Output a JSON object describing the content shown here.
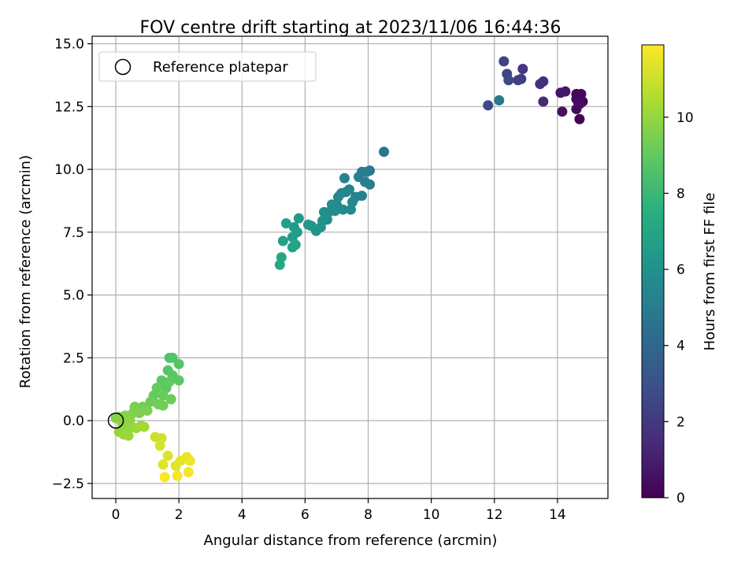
{
  "chart_data": {
    "type": "scatter",
    "title": "FOV centre drift starting at 2023/11/06 16:44:36",
    "xlabel": "Angular distance from reference (arcmin)",
    "ylabel": "Rotation from reference (arcmin)",
    "xlim": [
      -0.75,
      15.6
    ],
    "ylim": [
      -3.1,
      15.3
    ],
    "xticks": [
      0,
      2,
      4,
      6,
      8,
      10,
      12,
      14
    ],
    "yticks": [
      -2.5,
      0.0,
      2.5,
      5.0,
      7.5,
      10.0,
      12.5,
      15.0
    ],
    "xtick_labels": [
      "0",
      "2",
      "4",
      "6",
      "8",
      "10",
      "12",
      "14"
    ],
    "ytick_labels": [
      "−2.5",
      "0.0",
      "2.5",
      "5.0",
      "7.5",
      "10.0",
      "12.5",
      "15.0"
    ],
    "grid": true,
    "legend": {
      "position": "upper-left",
      "entries": [
        {
          "label": "Reference platepar",
          "marker": "hollow-circle"
        }
      ]
    },
    "reference_point": {
      "x": 0,
      "y": 0
    },
    "colorbar": {
      "label": "Hours from first FF file",
      "colormap": "viridis",
      "range": [
        0,
        11.9
      ],
      "ticks": [
        0,
        2,
        4,
        6,
        8,
        10
      ],
      "tick_labels": [
        "0",
        "2",
        "4",
        "6",
        "8",
        "10"
      ]
    },
    "points": [
      {
        "x": 14.7,
        "y": 12.0,
        "t": 0.05
      },
      {
        "x": 14.6,
        "y": 12.8,
        "t": 0.1
      },
      {
        "x": 14.8,
        "y": 12.7,
        "t": 0.15
      },
      {
        "x": 14.6,
        "y": 13.0,
        "t": 0.2
      },
      {
        "x": 14.7,
        "y": 12.9,
        "t": 0.25
      },
      {
        "x": 14.75,
        "y": 13.0,
        "t": 0.3
      },
      {
        "x": 14.6,
        "y": 12.4,
        "t": 0.35
      },
      {
        "x": 14.65,
        "y": 12.7,
        "t": 0.4
      },
      {
        "x": 14.7,
        "y": 12.6,
        "t": 0.45
      },
      {
        "x": 14.15,
        "y": 12.3,
        "t": 0.55
      },
      {
        "x": 14.1,
        "y": 13.05,
        "t": 0.65
      },
      {
        "x": 14.25,
        "y": 13.1,
        "t": 0.75
      },
      {
        "x": 13.55,
        "y": 12.7,
        "t": 1.4
      },
      {
        "x": 13.55,
        "y": 13.5,
        "t": 1.6
      },
      {
        "x": 13.45,
        "y": 13.4,
        "t": 1.7
      },
      {
        "x": 12.9,
        "y": 14.0,
        "t": 1.9
      },
      {
        "x": 12.85,
        "y": 13.6,
        "t": 2.0
      },
      {
        "x": 12.75,
        "y": 13.55,
        "t": 2.2
      },
      {
        "x": 12.3,
        "y": 14.3,
        "t": 2.4
      },
      {
        "x": 12.4,
        "y": 13.8,
        "t": 2.5
      },
      {
        "x": 12.45,
        "y": 13.55,
        "t": 2.6
      },
      {
        "x": 11.8,
        "y": 12.55,
        "t": 2.7
      },
      {
        "x": 12.15,
        "y": 12.75,
        "t": 4.8
      },
      {
        "x": 8.5,
        "y": 10.7,
        "t": 4.7
      },
      {
        "x": 8.05,
        "y": 9.95,
        "t": 4.9
      },
      {
        "x": 7.95,
        "y": 9.9,
        "t": 5.0
      },
      {
        "x": 7.8,
        "y": 9.9,
        "t": 5.1
      },
      {
        "x": 8.05,
        "y": 9.4,
        "t": 5.1
      },
      {
        "x": 7.9,
        "y": 9.5,
        "t": 5.2
      },
      {
        "x": 7.7,
        "y": 9.7,
        "t": 5.2
      },
      {
        "x": 7.8,
        "y": 8.95,
        "t": 5.25
      },
      {
        "x": 7.6,
        "y": 8.9,
        "t": 5.3
      },
      {
        "x": 7.25,
        "y": 9.65,
        "t": 5.35
      },
      {
        "x": 7.4,
        "y": 9.2,
        "t": 5.4
      },
      {
        "x": 7.3,
        "y": 9.1,
        "t": 5.45
      },
      {
        "x": 7.15,
        "y": 9.05,
        "t": 5.5
      },
      {
        "x": 7.05,
        "y": 8.9,
        "t": 5.55
      },
      {
        "x": 7.5,
        "y": 8.7,
        "t": 5.6
      },
      {
        "x": 7.45,
        "y": 8.4,
        "t": 5.65
      },
      {
        "x": 7.2,
        "y": 8.4,
        "t": 5.7
      },
      {
        "x": 7.0,
        "y": 8.6,
        "t": 5.75
      },
      {
        "x": 6.95,
        "y": 8.35,
        "t": 5.8
      },
      {
        "x": 6.85,
        "y": 8.6,
        "t": 5.85
      },
      {
        "x": 6.75,
        "y": 8.3,
        "t": 5.9
      },
      {
        "x": 6.6,
        "y": 8.3,
        "t": 5.95
      },
      {
        "x": 6.7,
        "y": 8.0,
        "t": 6.0
      },
      {
        "x": 6.55,
        "y": 7.95,
        "t": 6.05
      },
      {
        "x": 6.5,
        "y": 7.7,
        "t": 6.1
      },
      {
        "x": 6.35,
        "y": 7.55,
        "t": 6.15
      },
      {
        "x": 6.2,
        "y": 7.75,
        "t": 6.2
      },
      {
        "x": 6.1,
        "y": 7.8,
        "t": 6.3
      },
      {
        "x": 5.8,
        "y": 8.05,
        "t": 6.4
      },
      {
        "x": 5.65,
        "y": 7.7,
        "t": 6.5
      },
      {
        "x": 5.75,
        "y": 7.5,
        "t": 6.55
      },
      {
        "x": 5.6,
        "y": 7.3,
        "t": 6.6
      },
      {
        "x": 5.4,
        "y": 7.85,
        "t": 6.7
      },
      {
        "x": 5.3,
        "y": 7.15,
        "t": 6.8
      },
      {
        "x": 5.7,
        "y": 7.0,
        "t": 6.9
      },
      {
        "x": 5.6,
        "y": 6.9,
        "t": 7.0
      },
      {
        "x": 5.25,
        "y": 6.5,
        "t": 7.1
      },
      {
        "x": 5.2,
        "y": 6.2,
        "t": 7.2
      },
      {
        "x": 1.7,
        "y": 2.5,
        "t": 8.6
      },
      {
        "x": 1.8,
        "y": 2.5,
        "t": 8.65
      },
      {
        "x": 2.0,
        "y": 2.25,
        "t": 8.7
      },
      {
        "x": 1.65,
        "y": 2.0,
        "t": 8.75
      },
      {
        "x": 1.8,
        "y": 1.8,
        "t": 8.8
      },
      {
        "x": 2.0,
        "y": 1.6,
        "t": 8.85
      },
      {
        "x": 1.45,
        "y": 1.6,
        "t": 8.9
      },
      {
        "x": 1.6,
        "y": 1.3,
        "t": 8.95
      },
      {
        "x": 1.7,
        "y": 1.55,
        "t": 9.0
      },
      {
        "x": 1.3,
        "y": 1.3,
        "t": 9.05
      },
      {
        "x": 1.2,
        "y": 1.0,
        "t": 9.1
      },
      {
        "x": 1.5,
        "y": 1.0,
        "t": 9.15
      },
      {
        "x": 1.75,
        "y": 0.85,
        "t": 9.2
      },
      {
        "x": 1.1,
        "y": 0.75,
        "t": 9.25
      },
      {
        "x": 1.35,
        "y": 0.65,
        "t": 9.3
      },
      {
        "x": 1.5,
        "y": 0.6,
        "t": 9.35
      },
      {
        "x": 0.85,
        "y": 0.55,
        "t": 9.4
      },
      {
        "x": 0.6,
        "y": 0.55,
        "t": 9.45
      },
      {
        "x": 1.0,
        "y": 0.4,
        "t": 9.5
      },
      {
        "x": 0.75,
        "y": 0.3,
        "t": 9.55
      },
      {
        "x": 0.55,
        "y": 0.3,
        "t": 9.6
      },
      {
        "x": 0.3,
        "y": 0.2,
        "t": 9.65
      },
      {
        "x": 0.1,
        "y": 0.15,
        "t": 9.7
      },
      {
        "x": 0.0,
        "y": 0.1,
        "t": 9.75
      },
      {
        "x": 0.45,
        "y": 0.0,
        "t": 9.8
      },
      {
        "x": 0.2,
        "y": -0.1,
        "t": 9.85
      },
      {
        "x": 0.3,
        "y": -0.3,
        "t": 9.9
      },
      {
        "x": 0.5,
        "y": -0.25,
        "t": 9.95
      },
      {
        "x": 0.1,
        "y": -0.45,
        "t": 10.0
      },
      {
        "x": 0.25,
        "y": -0.55,
        "t": 10.05
      },
      {
        "x": 0.4,
        "y": -0.6,
        "t": 10.1
      },
      {
        "x": 0.65,
        "y": -0.3,
        "t": 10.15
      },
      {
        "x": 0.8,
        "y": -0.2,
        "t": 10.2
      },
      {
        "x": 0.9,
        "y": -0.25,
        "t": 10.25
      },
      {
        "x": 1.25,
        "y": -0.65,
        "t": 11.0
      },
      {
        "x": 1.45,
        "y": -0.7,
        "t": 11.1
      },
      {
        "x": 1.4,
        "y": -1.0,
        "t": 11.2
      },
      {
        "x": 1.65,
        "y": -1.4,
        "t": 11.3
      },
      {
        "x": 1.5,
        "y": -1.75,
        "t": 11.4
      },
      {
        "x": 1.9,
        "y": -1.8,
        "t": 11.45
      },
      {
        "x": 2.05,
        "y": -1.6,
        "t": 11.5
      },
      {
        "x": 2.25,
        "y": -1.45,
        "t": 11.55
      },
      {
        "x": 2.35,
        "y": -1.6,
        "t": 11.6
      },
      {
        "x": 2.3,
        "y": -2.05,
        "t": 11.7
      },
      {
        "x": 1.95,
        "y": -2.2,
        "t": 11.75
      },
      {
        "x": 1.55,
        "y": -2.25,
        "t": 11.85
      }
    ]
  }
}
